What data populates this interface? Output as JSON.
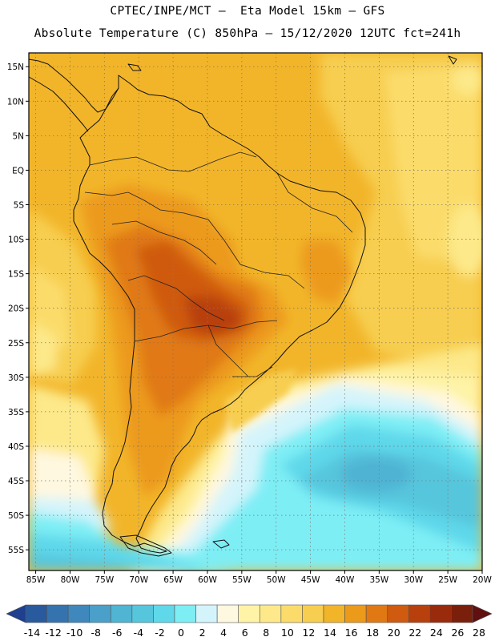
{
  "header": {
    "line1": "CPTEC/INPE/MCT –  Eta Model 15km – GFS",
    "line2": "Absolute Temperature (C) 850hPa – 15/12/2020 12UTC fct=241h"
  },
  "map": {
    "variable": "Absolute Temperature",
    "unit": "C",
    "level": "850hPa",
    "lat_range": [
      -58,
      17
    ],
    "lon_range": [
      -86,
      -20
    ],
    "lat_ticks": [
      {
        "value": 15,
        "label": "15N"
      },
      {
        "value": 10,
        "label": "10N"
      },
      {
        "value": 5,
        "label": "5N"
      },
      {
        "value": 0,
        "label": "EQ"
      },
      {
        "value": -5,
        "label": "5S"
      },
      {
        "value": -10,
        "label": "10S"
      },
      {
        "value": -15,
        "label": "15S"
      },
      {
        "value": -20,
        "label": "20S"
      },
      {
        "value": -25,
        "label": "25S"
      },
      {
        "value": -30,
        "label": "30S"
      },
      {
        "value": -35,
        "label": "35S"
      },
      {
        "value": -40,
        "label": "40S"
      },
      {
        "value": -45,
        "label": "45S"
      },
      {
        "value": -50,
        "label": "50S"
      },
      {
        "value": -55,
        "label": "55S"
      }
    ],
    "lon_ticks": [
      {
        "value": -85,
        "label": "85W"
      },
      {
        "value": -80,
        "label": "80W"
      },
      {
        "value": -75,
        "label": "75W"
      },
      {
        "value": -70,
        "label": "70W"
      },
      {
        "value": -65,
        "label": "65W"
      },
      {
        "value": -60,
        "label": "60W"
      },
      {
        "value": -55,
        "label": "55W"
      },
      {
        "value": -50,
        "label": "50W"
      },
      {
        "value": -45,
        "label": "45W"
      },
      {
        "value": -40,
        "label": "40W"
      },
      {
        "value": -35,
        "label": "35W"
      },
      {
        "value": -30,
        "label": "30W"
      },
      {
        "value": -25,
        "label": "25W"
      },
      {
        "value": -20,
        "label": "20W"
      }
    ]
  },
  "colorbar": {
    "labels": [
      "-14",
      "-12",
      "-10",
      "-8",
      "-6",
      "-4",
      "-2",
      "0",
      "2",
      "4",
      "6",
      "8",
      "10",
      "12",
      "14",
      "16",
      "18",
      "20",
      "22",
      "24",
      "26",
      "28"
    ],
    "colors": [
      "#1f3f8f",
      "#2a5a9e",
      "#3573af",
      "#3f88bd",
      "#4aa0c8",
      "#50b4d3",
      "#56c6dd",
      "#5fd8ea",
      "#7eeef5",
      "#d4f4fb",
      "#fff8e0",
      "#fef3a6",
      "#fde98a",
      "#fbdc6a",
      "#f7ce4f",
      "#f2b52a",
      "#ec9a1a",
      "#e07914",
      "#cf5a10",
      "#b8400d",
      "#9a2a0c",
      "#7a1f0c",
      "#601010"
    ]
  }
}
